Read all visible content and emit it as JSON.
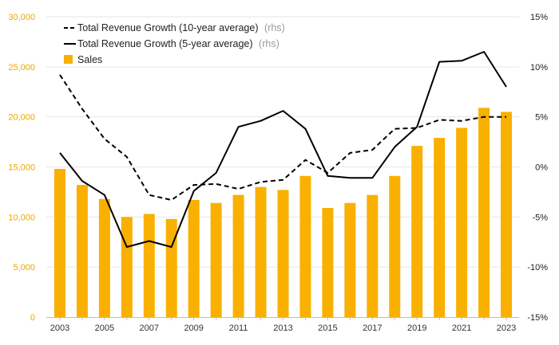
{
  "chart_data": {
    "type": "bar",
    "title": "",
    "x": [
      2003,
      2004,
      2005,
      2006,
      2007,
      2008,
      2009,
      2010,
      2011,
      2012,
      2013,
      2014,
      2015,
      2016,
      2017,
      2018,
      2019,
      2020,
      2021,
      2022,
      2023
    ],
    "x_tick_labels": [
      "2003",
      "2005",
      "2007",
      "2009",
      "2011",
      "2013",
      "2015",
      "2017",
      "2019",
      "2021",
      "2023"
    ],
    "y_left": {
      "ylim": [
        0,
        30000
      ],
      "ticks": [
        0,
        5000,
        10000,
        15000,
        20000,
        25000,
        30000
      ],
      "tick_labels": [
        "0",
        "5,000",
        "10,000",
        "15,000",
        "20,000",
        "25,000",
        "30,000"
      ]
    },
    "y_right": {
      "ylim": [
        -15,
        15
      ],
      "ticks": [
        -15,
        -10,
        -5,
        0,
        5,
        10,
        15
      ],
      "tick_labels": [
        "-15%",
        "-10%",
        "-5%",
        "0%",
        "5%",
        "10%",
        "15%"
      ]
    },
    "series": [
      {
        "name": "Sales",
        "type": "bar",
        "axis": "left",
        "color": "#f9b000",
        "values": [
          14800,
          13200,
          11800,
          10000,
          10300,
          9800,
          11700,
          11400,
          12200,
          13000,
          12700,
          14100,
          10900,
          11400,
          12200,
          14100,
          17100,
          17900,
          18900,
          20900,
          20500
        ]
      },
      {
        "name": "Total Revenue Growth (10-year average)",
        "suffix": "(rhs)",
        "type": "line",
        "axis": "right",
        "dash": "dashed",
        "color": "#000000",
        "values": [
          9.2,
          5.8,
          2.8,
          1.0,
          -2.8,
          -3.3,
          -1.8,
          -1.7,
          -2.2,
          -1.5,
          -1.3,
          0.7,
          -0.6,
          1.4,
          1.7,
          3.8,
          3.9,
          4.7,
          4.6,
          5.0,
          5.0
        ]
      },
      {
        "name": "Total Revenue Growth (5-year average)",
        "suffix": "(rhs)",
        "type": "line",
        "axis": "right",
        "dash": "solid",
        "color": "#000000",
        "values": [
          1.4,
          -1.4,
          -2.8,
          -8.0,
          -7.4,
          -8.0,
          -2.4,
          -0.6,
          4.0,
          4.6,
          5.6,
          3.8,
          -0.9,
          -1.1,
          -1.1,
          2.0,
          4.0,
          10.5,
          10.6,
          11.5,
          8.0
        ]
      }
    ],
    "grid": true,
    "legend_position": "top-left"
  }
}
